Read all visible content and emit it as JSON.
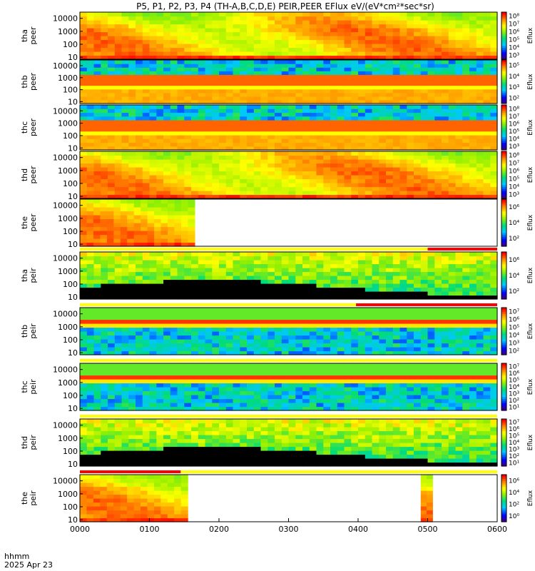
{
  "title": "P5, P1, P2, P3, P4 (TH-A,B,C,D,E) PEIR,PEER EFlux eV/(eV*cm²*sec*sr)",
  "footer": {
    "time_label": "hhmm",
    "date_label": "2025 Apr 23"
  },
  "chart_data": {
    "type": "heatmap",
    "x_ticks": [
      "0000",
      "0100",
      "0200",
      "0300",
      "0400",
      "0500",
      "0600"
    ],
    "x_range_hours": [
      0,
      6
    ],
    "y_ticks": [
      "10",
      "100",
      "1000",
      "10000"
    ],
    "y_scale": "log",
    "y_range": [
      7,
      30000
    ],
    "panels": [
      {
        "probe": "tha",
        "species": "peer",
        "label": [
          "tha",
          "peer"
        ],
        "colorbar_label": "Eflux",
        "data_coverage_hours": [
          0,
          6
        ],
        "pattern": "hot",
        "cb_ticks": [
          "10³",
          "10⁴",
          "10⁵",
          "10⁶",
          "10⁷",
          "10⁸"
        ],
        "cb_range_exp": [
          2.5,
          8.5
        ],
        "flags": []
      },
      {
        "probe": "thb",
        "species": "peer",
        "label": [
          "thb",
          "peer"
        ],
        "colorbar_label": "Eflux",
        "data_coverage_hours": [
          0,
          6
        ],
        "pattern": "band",
        "cb_ticks": [
          "10²",
          "10³",
          "10⁴",
          "10⁵"
        ],
        "cb_range_exp": [
          1.5,
          6
        ],
        "flags": []
      },
      {
        "probe": "thc",
        "species": "peer",
        "label": [
          "thc",
          "peer"
        ],
        "colorbar_label": "Eflux",
        "data_coverage_hours": [
          0,
          6
        ],
        "pattern": "band",
        "cb_ticks": [
          "10³",
          "10⁴",
          "10⁵",
          "10⁶",
          "10⁷",
          "10⁸"
        ],
        "cb_range_exp": [
          2.5,
          8.5
        ],
        "flags": []
      },
      {
        "probe": "thd",
        "species": "peer",
        "label": [
          "thd",
          "peer"
        ],
        "colorbar_label": "Eflux",
        "data_coverage_hours": [
          0,
          6
        ],
        "pattern": "hot",
        "cb_ticks": [
          "10³",
          "10⁴",
          "10⁵",
          "10⁶",
          "10⁷",
          "10⁸"
        ],
        "cb_range_exp": [
          2.5,
          8.5
        ],
        "flags": []
      },
      {
        "probe": "the",
        "species": "peer",
        "label": [
          "the",
          "peer"
        ],
        "colorbar_label": "Eflux",
        "data_coverage_hours": [
          0,
          1.65
        ],
        "pattern": "hot",
        "cb_ticks": [
          "10²",
          "10⁴",
          "10⁶"
        ],
        "cb_range_exp": [
          1.5,
          7
        ],
        "flags": []
      },
      {
        "probe": "tha",
        "species": "peir",
        "label": [
          "tha",
          "peir"
        ],
        "colorbar_label": "Eflux",
        "data_coverage_hours": [
          0,
          6
        ],
        "pattern": "ion",
        "cb_ticks": [
          "10²",
          "10⁴",
          "10⁶"
        ],
        "cb_range_exp": [
          1.5,
          7
        ],
        "flags": [
          {
            "start": 0,
            "end": 5.0,
            "color": "#ffff00"
          },
          {
            "start": 5.0,
            "end": 6,
            "color": "#ff0000"
          }
        ]
      },
      {
        "probe": "thb",
        "species": "peir",
        "label": [
          "thb",
          "peir"
        ],
        "colorbar_label": "Eflux",
        "data_coverage_hours": [
          0,
          6
        ],
        "pattern": "ionband",
        "cb_ticks": [
          "10²",
          "10³",
          "10⁴",
          "10⁵",
          "10⁶",
          "10⁷"
        ],
        "cb_range_exp": [
          1.5,
          7.5
        ],
        "flags": [
          {
            "start": 0,
            "end": 3.97,
            "color": "#ffff00"
          },
          {
            "start": 3.97,
            "end": 6,
            "color": "#ff0000"
          }
        ]
      },
      {
        "probe": "thc",
        "species": "peir",
        "label": [
          "thc",
          "peir"
        ],
        "colorbar_label": "Eflux",
        "data_coverage_hours": [
          0,
          6
        ],
        "pattern": "ionband",
        "cb_ticks": [
          "10¹",
          "10²",
          "10³",
          "10⁴",
          "10⁵",
          "10⁶",
          "10⁷"
        ],
        "cb_range_exp": [
          0.5,
          7.5
        ],
        "flags": [
          {
            "start": 0,
            "end": 6,
            "color": "#ffff00"
          }
        ]
      },
      {
        "probe": "thd",
        "species": "peir",
        "label": [
          "thd",
          "peir"
        ],
        "colorbar_label": "Eflux",
        "data_coverage_hours": [
          0,
          6
        ],
        "pattern": "ion",
        "cb_ticks": [
          "10¹",
          "10²",
          "10³",
          "10⁴",
          "10⁵",
          "10⁶",
          "10⁷"
        ],
        "cb_range_exp": [
          0.5,
          7.5
        ],
        "flags": [
          {
            "start": 0,
            "end": 6,
            "color": "#ffff00"
          }
        ]
      },
      {
        "probe": "the",
        "species": "peir",
        "label": [
          "the",
          "peir"
        ],
        "colorbar_label": "Eflux",
        "data_coverage_hours": [
          0,
          1.55
        ],
        "extra_coverage_hours": [
          4.9,
          5.07
        ],
        "pattern": "hot",
        "cb_ticks": [
          "10⁰",
          "10²",
          "10⁴",
          "10⁶"
        ],
        "cb_range_exp": [
          -0.5,
          7
        ],
        "flags": [
          {
            "start": 0,
            "end": 1.45,
            "color": "#ff0000"
          },
          {
            "start": 1.45,
            "end": 6,
            "color": "#ffff00"
          }
        ]
      }
    ]
  }
}
